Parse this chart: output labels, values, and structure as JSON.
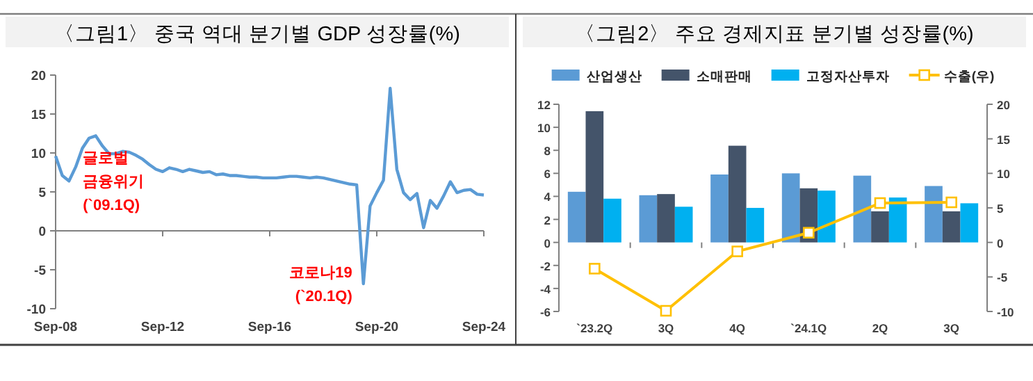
{
  "chart_data": [
    {
      "type": "line",
      "title": "〈그림1〉 중국 역대 분기별 GDP 성장률(%)",
      "color": "#5b9bd5",
      "x": [
        "2008-09",
        "2008-12",
        "2009-03",
        "2009-06",
        "2009-09",
        "2009-12",
        "2010-03",
        "2010-06",
        "2010-09",
        "2010-12",
        "2011-03",
        "2011-06",
        "2011-09",
        "2011-12",
        "2012-03",
        "2012-06",
        "2012-09",
        "2012-12",
        "2013-03",
        "2013-06",
        "2013-09",
        "2013-12",
        "2014-03",
        "2014-06",
        "2014-09",
        "2014-12",
        "2015-03",
        "2015-06",
        "2015-09",
        "2015-12",
        "2016-03",
        "2016-06",
        "2016-09",
        "2016-12",
        "2017-03",
        "2017-06",
        "2017-09",
        "2017-12",
        "2018-03",
        "2018-06",
        "2018-09",
        "2018-12",
        "2019-03",
        "2019-06",
        "2019-09",
        "2019-12",
        "2020-03",
        "2020-06",
        "2020-09",
        "2020-12",
        "2021-03",
        "2021-06",
        "2021-09",
        "2021-12",
        "2022-03",
        "2022-06",
        "2022-09",
        "2022-12",
        "2023-03",
        "2023-06",
        "2023-09",
        "2023-12",
        "2024-03",
        "2024-06",
        "2024-09"
      ],
      "values": [
        9.6,
        7.1,
        6.4,
        8.2,
        10.6,
        11.9,
        12.2,
        10.9,
        9.9,
        9.9,
        10.2,
        10.1,
        9.7,
        9.2,
        8.5,
        7.9,
        7.6,
        8.1,
        7.9,
        7.6,
        7.9,
        7.7,
        7.5,
        7.6,
        7.2,
        7.3,
        7.1,
        7.1,
        7.0,
        6.9,
        6.9,
        6.8,
        6.8,
        6.8,
        6.9,
        7.0,
        7.0,
        6.9,
        6.8,
        6.9,
        6.8,
        6.6,
        6.4,
        6.2,
        6.0,
        5.9,
        -6.8,
        3.2,
        4.9,
        6.5,
        18.3,
        7.9,
        4.9,
        4.0,
        4.8,
        0.4,
        3.9,
        2.9,
        4.5,
        6.3,
        4.9,
        5.2,
        5.3,
        4.7,
        4.6
      ],
      "xlim": [
        "2008-09",
        "2024-09"
      ],
      "xticks": [
        {
          "value": "2008-09",
          "label": "Sep-08"
        },
        {
          "value": "2012-09",
          "label": "Sep-12"
        },
        {
          "value": "2016-09",
          "label": "Sep-16"
        },
        {
          "value": "2020-09",
          "label": "Sep-20"
        },
        {
          "value": "2024-09",
          "label": "Sep-24"
        }
      ],
      "ylim": [
        -10,
        20
      ],
      "yticks": [
        -10,
        -5,
        0,
        5,
        10,
        15,
        20
      ],
      "annotations": [
        {
          "text": "글로벌 금융위기 (`09.1Q)",
          "x": "2009-03",
          "y": 6.4
        },
        {
          "text": "코로나19 (`20.1Q)",
          "x": "2020-03",
          "y": -6.8
        }
      ]
    },
    {
      "type": "bar",
      "title": "〈그림2〉 주요 경제지표 분기별 성장률(%)",
      "categories": [
        "`23.2Q",
        "3Q",
        "4Q",
        "`24.1Q",
        "2Q",
        "3Q"
      ],
      "series": [
        {
          "name": "산업생산",
          "color": "#5b9bd5",
          "values": [
            4.4,
            4.1,
            5.9,
            6.0,
            5.8,
            4.9
          ]
        },
        {
          "name": "소매판매",
          "color": "#44546a",
          "values": [
            11.4,
            4.2,
            8.4,
            4.7,
            2.7,
            2.7
          ]
        },
        {
          "name": "고정자산투자",
          "color": "#00b0f0",
          "values": [
            3.8,
            3.1,
            3.0,
            4.5,
            3.9,
            3.4
          ]
        },
        {
          "name": "수출(우)",
          "type": "line",
          "axis": "y2",
          "marker": "square",
          "color": "#ffc000",
          "values": [
            -3.8,
            -9.9,
            -1.3,
            1.4,
            5.7,
            5.8
          ]
        }
      ],
      "ylim": [
        -6,
        12
      ],
      "yticks": [
        -6,
        -4,
        -2,
        0,
        2,
        4,
        6,
        8,
        10,
        12
      ],
      "y2lim": [
        -10,
        20
      ],
      "y2ticks": [
        -10,
        -5,
        0,
        5,
        10,
        15,
        20
      ],
      "legend": "top"
    }
  ]
}
